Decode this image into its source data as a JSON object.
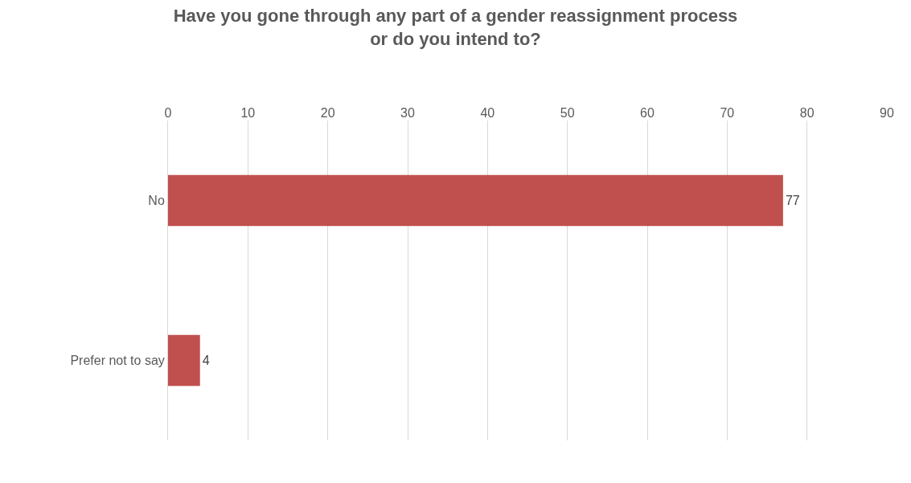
{
  "chart_data": {
    "type": "bar",
    "orientation": "horizontal",
    "title": "Have you gone through any part of a gender reassignment process\nor do you intend to?",
    "categories": [
      "No",
      "Prefer not to say"
    ],
    "values": [
      77,
      4
    ],
    "color": "#c0504d",
    "xlim": [
      0,
      90
    ],
    "xticks": [
      0,
      10,
      20,
      30,
      40,
      50,
      60,
      70,
      80,
      90
    ],
    "grid": "x",
    "data_labels": true,
    "legend": false
  }
}
